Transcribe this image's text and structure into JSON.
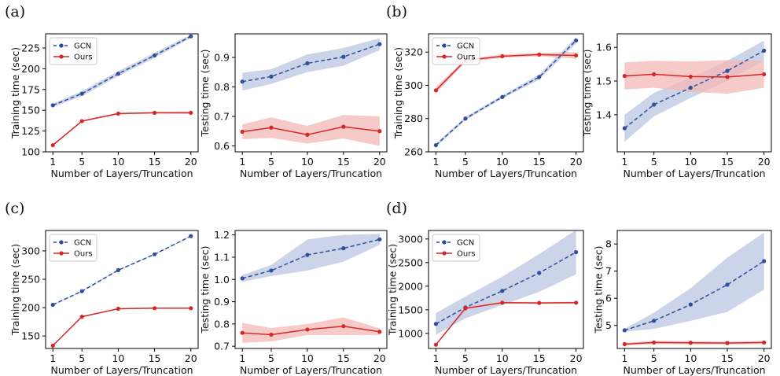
{
  "panel_labels": [
    "(a)",
    "(b)",
    "(c)",
    "(d)"
  ],
  "colors": {
    "gcn": "#2e4f9a",
    "ours": "#d62728",
    "gcn_band": "#b9c6e0",
    "ours_band": "#f4b8b8"
  },
  "chart_data": [
    {
      "type": "line",
      "panel": "(a)",
      "xlabel": "Number of Layers/Truncation",
      "ylabel": "Training time (sec)",
      "x": [
        1,
        5,
        10,
        15,
        20
      ],
      "xlim": [
        0,
        21
      ],
      "ylim": [
        100,
        242
      ],
      "yticks": [
        100,
        125,
        150,
        175,
        200,
        225
      ],
      "ytick_labels": [
        "100",
        "125",
        "150",
        "175",
        "200",
        "225"
      ],
      "legend": "top-left",
      "series": [
        {
          "name": "GCN",
          "values": [
            156,
            170,
            194,
            216,
            239
          ],
          "band": [
            2,
            3,
            3,
            3,
            2
          ]
        },
        {
          "name": "Ours",
          "values": [
            108,
            137,
            146,
            147,
            147
          ],
          "band": [
            1,
            1,
            1,
            1,
            1.5
          ]
        }
      ]
    },
    {
      "type": "line",
      "panel": "(a)",
      "xlabel": "Number of Layers/Truncation",
      "ylabel": "Testing time (sec)",
      "x": [
        1,
        5,
        10,
        15,
        20
      ],
      "xlim": [
        0,
        21
      ],
      "ylim": [
        0.58,
        0.98
      ],
      "yticks": [
        0.6,
        0.7,
        0.8,
        0.9
      ],
      "ytick_labels": [
        "0.6",
        "0.7",
        "0.8",
        "0.9"
      ],
      "series": [
        {
          "name": "GCN",
          "values": [
            0.818,
            0.835,
            0.88,
            0.902,
            0.945
          ],
          "band": [
            0.03,
            0.025,
            0.03,
            0.03,
            0.02
          ]
        },
        {
          "name": "Ours",
          "values": [
            0.648,
            0.662,
            0.638,
            0.665,
            0.65
          ],
          "band": [
            0.025,
            0.035,
            0.03,
            0.04,
            0.05
          ]
        }
      ]
    },
    {
      "type": "line",
      "panel": "(b)",
      "xlabel": "Number of Layers/Truncation",
      "ylabel": "Training time (sec)",
      "x": [
        1,
        5,
        10,
        15,
        20
      ],
      "xlim": [
        0,
        21
      ],
      "ylim": [
        260,
        331
      ],
      "yticks": [
        260,
        280,
        300,
        320
      ],
      "ytick_labels": [
        "260",
        "280",
        "300",
        "320"
      ],
      "legend": "top-left",
      "series": [
        {
          "name": "GCN",
          "values": [
            264,
            280,
            293,
            305,
            327
          ],
          "band": [
            1,
            1,
            1,
            1.5,
            2
          ]
        },
        {
          "name": "Ours",
          "values": [
            297,
            315,
            317.5,
            318.5,
            318
          ],
          "band": [
            2,
            1,
            1,
            1,
            2
          ]
        }
      ]
    },
    {
      "type": "line",
      "panel": "(b)",
      "xlabel": "Number of Layers/Truncation",
      "ylabel": "Testing time (sec)",
      "x": [
        1,
        5,
        10,
        15,
        20
      ],
      "xlim": [
        0,
        21
      ],
      "ylim": [
        1.29,
        1.64
      ],
      "yticks": [
        1.4,
        1.5,
        1.6
      ],
      "ytick_labels": [
        "1.4",
        "1.5",
        "1.6"
      ],
      "series": [
        {
          "name": "GCN",
          "values": [
            1.36,
            1.43,
            1.48,
            1.53,
            1.59
          ],
          "band": [
            0.04,
            0.035,
            0.03,
            0.03,
            0.03
          ]
        },
        {
          "name": "Ours",
          "values": [
            1.515,
            1.52,
            1.513,
            1.512,
            1.52
          ],
          "band": [
            0.04,
            0.04,
            0.045,
            0.05,
            0.04
          ]
        }
      ]
    },
    {
      "type": "line",
      "panel": "(c)",
      "xlabel": "Number of Layers/Truncation",
      "ylabel": "Training time (sec)",
      "x": [
        1,
        5,
        10,
        15,
        20
      ],
      "xlim": [
        0,
        21
      ],
      "ylim": [
        128,
        336
      ],
      "yticks": [
        150,
        200,
        250,
        300
      ],
      "ytick_labels": [
        "150",
        "200",
        "250",
        "300"
      ],
      "legend": "top-left",
      "series": [
        {
          "name": "GCN",
          "values": [
            205,
            229,
            266,
            294,
            326
          ],
          "band": [
            1,
            1,
            1,
            1,
            1
          ]
        },
        {
          "name": "Ours",
          "values": [
            133,
            184,
            198,
            199,
            199
          ],
          "band": [
            1,
            1,
            1,
            1,
            1
          ]
        }
      ]
    },
    {
      "type": "line",
      "panel": "(c)",
      "xlabel": "Number of Layers/Truncation",
      "ylabel": "Testing time (sec)",
      "x": [
        1,
        5,
        10,
        15,
        20
      ],
      "xlim": [
        0,
        21
      ],
      "ylim": [
        0.69,
        1.22
      ],
      "yticks": [
        0.7,
        0.8,
        0.9,
        1.0,
        1.1,
        1.2
      ],
      "ytick_labels": [
        "0.7",
        "0.8",
        "0.9",
        "1.0",
        "1.1",
        "1.2"
      ],
      "series": [
        {
          "name": "GCN",
          "values": [
            1.005,
            1.04,
            1.11,
            1.14,
            1.18
          ],
          "band": [
            0.015,
            0.025,
            0.07,
            0.06,
            0.025
          ]
        },
        {
          "name": "Ours",
          "values": [
            0.76,
            0.752,
            0.775,
            0.79,
            0.765
          ],
          "band": [
            0.045,
            0.03,
            0.025,
            0.04,
            0.015
          ]
        }
      ]
    },
    {
      "type": "line",
      "panel": "(d)",
      "xlabel": "Number of Layers/Truncation",
      "ylabel": "Training time (sec)",
      "x": [
        1,
        5,
        10,
        15,
        20
      ],
      "xlim": [
        0,
        21
      ],
      "ylim": [
        680,
        3180
      ],
      "yticks": [
        1000,
        1500,
        2000,
        2500,
        3000
      ],
      "ytick_labels": [
        "1000",
        "1500",
        "2000",
        "2500",
        "3000"
      ],
      "legend": "top-left",
      "series": [
        {
          "name": "GCN",
          "values": [
            1200,
            1550,
            1900,
            2280,
            2720
          ],
          "band": [
            230,
            230,
            300,
            400,
            470
          ]
        },
        {
          "name": "Ours",
          "values": [
            760,
            1530,
            1650,
            1645,
            1650
          ],
          "band": [
            15,
            20,
            20,
            20,
            20
          ]
        }
      ]
    },
    {
      "type": "line",
      "panel": "(d)",
      "xlabel": "Number of Layers/Truncation",
      "ylabel": "Testing time (sec)",
      "x": [
        1,
        5,
        10,
        15,
        20
      ],
      "xlim": [
        0,
        21
      ],
      "ylim": [
        4.15,
        8.5
      ],
      "yticks": [
        5,
        6,
        7,
        8
      ],
      "ytick_labels": [
        "5",
        "6",
        "7",
        "8"
      ],
      "series": [
        {
          "name": "GCN",
          "values": [
            4.82,
            5.17,
            5.77,
            6.5,
            7.37
          ],
          "band": [
            0.05,
            0.3,
            0.6,
            1.0,
            1.05
          ]
        },
        {
          "name": "Ours",
          "values": [
            4.31,
            4.37,
            4.36,
            4.35,
            4.37
          ],
          "band": [
            0.05,
            0.06,
            0.06,
            0.05,
            0.06
          ]
        }
      ]
    }
  ]
}
